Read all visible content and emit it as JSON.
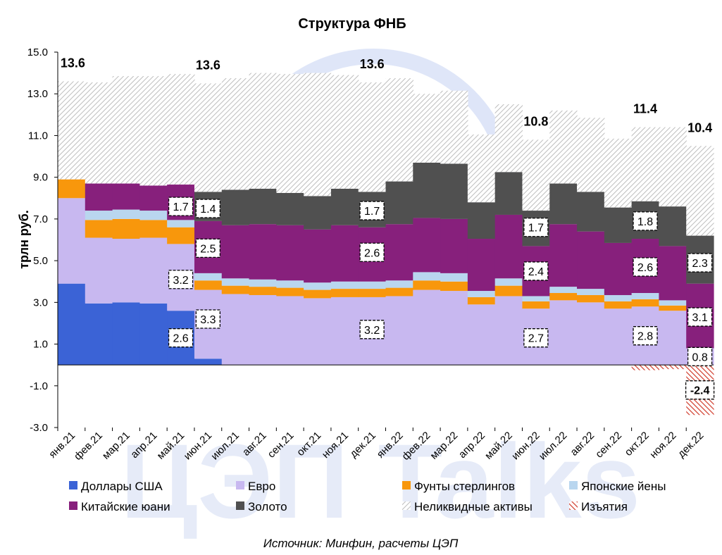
{
  "chart_data": {
    "type": "bar",
    "stacked": true,
    "title": "Структура ФНБ",
    "ylabel": "трлн руб.",
    "xlabel": "",
    "ylim": [
      -3.0,
      15.0
    ],
    "yticks": [
      "15.0",
      "13.0",
      "11.0",
      "9.0",
      "7.0",
      "5.0",
      "3.0",
      "1.0",
      "-1.0",
      "-3.0"
    ],
    "ytick_values": [
      15,
      13,
      11,
      9,
      7,
      5,
      3,
      1,
      -1,
      -3
    ],
    "categories": [
      "янв.21",
      "фев.21",
      "мар.21",
      "апр.21",
      "май.21",
      "июн.21",
      "июл.21",
      "авг.21",
      "сен.21",
      "окт.21",
      "ноя.21",
      "дек.21",
      "янв.22",
      "фев.22",
      "мар.22",
      "апр.22",
      "май.22",
      "июн.22",
      "июл.22",
      "авг.22",
      "сен.22",
      "окт.22",
      "ноя.22",
      "дек.22"
    ],
    "series": [
      {
        "key": "usd",
        "name": "Доллары США",
        "color": "#3b63d6",
        "values": [
          3.9,
          2.95,
          3.0,
          2.95,
          2.6,
          0.3,
          0,
          0,
          0,
          0,
          0,
          0,
          0,
          0,
          0,
          0,
          0,
          0,
          0,
          0,
          0,
          0,
          0,
          0
        ]
      },
      {
        "key": "eur",
        "name": "Евро",
        "color": "#c8b8f0",
        "values": [
          4.1,
          3.15,
          3.05,
          3.15,
          3.2,
          3.3,
          3.4,
          3.35,
          3.3,
          3.2,
          3.25,
          3.25,
          3.3,
          3.6,
          3.55,
          2.9,
          3.3,
          2.7,
          3.1,
          3.0,
          2.7,
          2.8,
          2.6,
          0.8
        ]
      },
      {
        "key": "gbp",
        "name": "Фунты стерлингов",
        "color": "#f8970c",
        "values": [
          0.9,
          0.85,
          0.95,
          0.85,
          0.8,
          0.45,
          0.4,
          0.4,
          0.4,
          0.4,
          0.4,
          0.4,
          0.4,
          0.45,
          0.45,
          0.35,
          0.5,
          0.35,
          0.35,
          0.35,
          0.35,
          0.35,
          0.25,
          0
        ]
      },
      {
        "key": "jpy",
        "name": "Японские йены",
        "color": "#b9d6ef",
        "values": [
          0,
          0.45,
          0.45,
          0.45,
          0.35,
          0.35,
          0.35,
          0.35,
          0.35,
          0.35,
          0.35,
          0.35,
          0.35,
          0.4,
          0.4,
          0.3,
          0.35,
          0.25,
          0.3,
          0.3,
          0.3,
          0.3,
          0.25,
          0
        ]
      },
      {
        "key": "cny",
        "name": "Китайские юани",
        "color": "#87207c",
        "values": [
          0,
          1.3,
          1.25,
          1.2,
          1.7,
          2.5,
          2.55,
          2.65,
          2.65,
          2.55,
          2.7,
          2.6,
          2.7,
          2.6,
          2.6,
          2.5,
          3.05,
          2.4,
          3.0,
          2.75,
          2.5,
          2.6,
          2.6,
          3.1
        ]
      },
      {
        "key": "gold",
        "name": "Золото",
        "color": "#505050",
        "values": [
          0,
          0,
          0,
          0,
          0,
          1.4,
          1.7,
          1.7,
          1.55,
          1.6,
          1.75,
          1.7,
          2.05,
          2.65,
          2.65,
          1.75,
          2.05,
          1.7,
          1.95,
          1.9,
          1.7,
          1.8,
          1.9,
          2.3
        ]
      },
      {
        "key": "illiquid",
        "name": "Неликвидные активы",
        "color": "#d6d6d6",
        "values": [
          4.7,
          4.85,
          5.15,
          5.25,
          5.3,
          5.2,
          5.35,
          5.55,
          5.7,
          5.9,
          5.45,
          5.25,
          4.95,
          3.3,
          3.5,
          3.25,
          3.25,
          3.4,
          3.5,
          3.55,
          3.3,
          3.55,
          3.8,
          4.3
        ]
      },
      {
        "key": "withdrawal",
        "name": "Изъятия",
        "color": "#d03a2a",
        "values": [
          0,
          0,
          0,
          0,
          0,
          0,
          0,
          0,
          0,
          0,
          0,
          0,
          0,
          0,
          0,
          0,
          0,
          0,
          0,
          0,
          0,
          -0.25,
          -0.2,
          -2.4
        ]
      }
    ],
    "totals": [
      {
        "index": 0,
        "label": "13.6"
      },
      {
        "index": 5,
        "label": "13.6"
      },
      {
        "index": 11,
        "label": "13.6"
      },
      {
        "index": 17,
        "label": "10.8"
      },
      {
        "index": 21,
        "label": "11.4"
      },
      {
        "index": 23,
        "label": "10.4"
      }
    ],
    "box_labels": [
      {
        "index": 4,
        "y": 7.6,
        "label": "1.7"
      },
      {
        "index": 4,
        "y": 4.1,
        "label": "3.2"
      },
      {
        "index": 4,
        "y": 1.3,
        "label": "2.6"
      },
      {
        "index": 5,
        "y": 7.5,
        "label": "1.4"
      },
      {
        "index": 5,
        "y": 5.6,
        "label": "2.5"
      },
      {
        "index": 5,
        "y": 2.2,
        "label": "3.3"
      },
      {
        "index": 11,
        "y": 7.4,
        "label": "1.7"
      },
      {
        "index": 11,
        "y": 5.4,
        "label": "2.6"
      },
      {
        "index": 11,
        "y": 1.7,
        "label": "3.2"
      },
      {
        "index": 17,
        "y": 6.6,
        "label": "1.7"
      },
      {
        "index": 17,
        "y": 4.5,
        "label": "2.4"
      },
      {
        "index": 17,
        "y": 1.3,
        "label": "2.7"
      },
      {
        "index": 21,
        "y": 6.9,
        "label": "1.8"
      },
      {
        "index": 21,
        "y": 4.7,
        "label": "2.6"
      },
      {
        "index": 21,
        "y": 1.4,
        "label": "2.8"
      },
      {
        "index": 23,
        "y": 4.9,
        "label": "2.3"
      },
      {
        "index": 23,
        "y": 2.3,
        "label": "3.1"
      },
      {
        "index": 23,
        "y": 0.4,
        "label": "0.8"
      },
      {
        "index": 23,
        "y": -1.2,
        "label": "-2.4",
        "bold": true
      }
    ],
    "legend": {
      "placement": "bottom",
      "columns": 4
    }
  },
  "watermark": "ЦЭП Talks",
  "source": "Источник: Минфин, расчеты ЦЭП"
}
